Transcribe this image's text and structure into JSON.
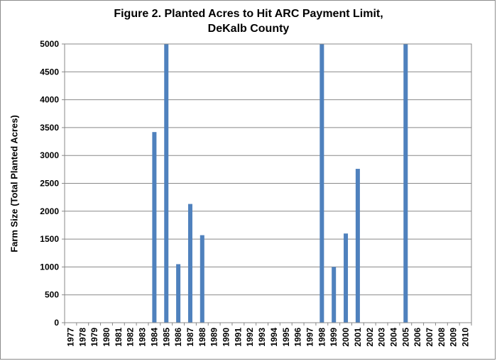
{
  "chart_data": {
    "type": "bar",
    "title": [
      "Figure  2. Planted Acres to Hit ARC Payment Limit,",
      "DeKalb County"
    ],
    "xlabel": "",
    "ylabel": "Farm Size (Total Planted Acres)",
    "ylim": [
      0,
      5000
    ],
    "yticks": [
      0,
      500,
      1000,
      1500,
      2000,
      2500,
      3000,
      3500,
      4000,
      4500,
      5000
    ],
    "grid": true,
    "legend": "none",
    "categories": [
      "1977",
      "1978",
      "1979",
      "1980",
      "1981",
      "1982",
      "1983",
      "1984",
      "1985",
      "1986",
      "1987",
      "1988",
      "1989",
      "1990",
      "1991",
      "1992",
      "1993",
      "1994",
      "1995",
      "1996",
      "1997",
      "1998",
      "1999",
      "2000",
      "2001",
      "2002",
      "2003",
      "2004",
      "2005",
      "2006",
      "2007",
      "2008",
      "2009",
      "2010"
    ],
    "values": [
      0,
      0,
      0,
      0,
      0,
      0,
      0,
      3420,
      5000,
      1050,
      2130,
      1570,
      0,
      0,
      0,
      0,
      0,
      0,
      0,
      0,
      0,
      5000,
      1000,
      1600,
      2760,
      0,
      0,
      0,
      5000,
      0,
      0,
      0,
      0,
      0
    ],
    "bar_color": "#4f81bd",
    "grid_color": "#888888"
  }
}
